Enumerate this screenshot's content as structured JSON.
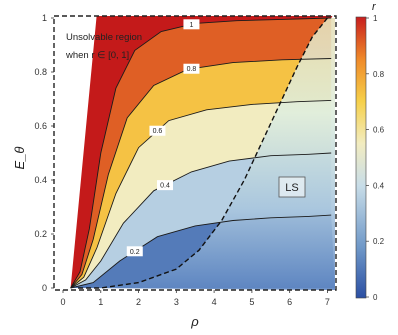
{
  "chart_data": {
    "type": "contour",
    "xlabel": "ρ",
    "ylabel": "E_θ",
    "colorbar_label": "r",
    "xlim": [
      0,
      7.2
    ],
    "ylim": [
      0,
      1.0
    ],
    "xticks": [
      "0",
      "1",
      "2",
      "3",
      "4",
      "5",
      "6",
      "7"
    ],
    "yticks": [
      "0",
      "0.2",
      "0.4",
      "0.6",
      "0.8",
      "1"
    ],
    "colorbar_ticks": [
      "0",
      "0.2",
      "0.4",
      "0.6",
      "0.8",
      "1"
    ],
    "colorbar_range": [
      0,
      1
    ],
    "colormap": [
      "#2b4fa3",
      "#6f98c8",
      "#c8dde8",
      "#f2ecc0",
      "#f6d04a",
      "#ef8a2a",
      "#c81e1e"
    ],
    "annotations": [
      {
        "text_line1": "Unsolvable region",
        "text_line2": "when r ∈ [0, 1]"
      },
      {
        "text": "LS"
      }
    ],
    "contours": [
      {
        "label": "0.2",
        "level": 0.2,
        "x": [
          0.2,
          0.8,
          1.5,
          2.5,
          3.5,
          4.5,
          5.5,
          6.5,
          7.1
        ],
        "y": [
          0.0,
          0.02,
          0.1,
          0.19,
          0.23,
          0.25,
          0.26,
          0.265,
          0.27
        ]
      },
      {
        "label": "0.4",
        "level": 0.4,
        "x": [
          0.2,
          0.6,
          1.0,
          1.6,
          2.4,
          3.4,
          4.4,
          5.5,
          6.5,
          7.1
        ],
        "y": [
          0.0,
          0.03,
          0.1,
          0.24,
          0.36,
          0.43,
          0.47,
          0.49,
          0.495,
          0.5
        ]
      },
      {
        "label": "0.6",
        "level": 0.6,
        "x": [
          0.2,
          0.55,
          0.9,
          1.4,
          2.0,
          2.8,
          3.8,
          5.0,
          6.2,
          7.1
        ],
        "y": [
          0.0,
          0.04,
          0.15,
          0.35,
          0.52,
          0.62,
          0.66,
          0.68,
          0.69,
          0.695
        ]
      },
      {
        "label": "0.8",
        "level": 0.8,
        "x": [
          0.2,
          0.5,
          0.8,
          1.2,
          1.7,
          2.4,
          3.3,
          4.5,
          5.8,
          7.1
        ],
        "y": [
          0.0,
          0.05,
          0.18,
          0.42,
          0.63,
          0.75,
          0.81,
          0.835,
          0.845,
          0.85
        ]
      },
      {
        "label": "1",
        "level": 1.0,
        "x": [
          0.2,
          0.45,
          0.7,
          1.0,
          1.4,
          1.9,
          2.6,
          3.5,
          4.6,
          5.8,
          7.1
        ],
        "y": [
          0.0,
          0.06,
          0.22,
          0.5,
          0.74,
          0.88,
          0.95,
          0.98,
          0.99,
          0.995,
          1.0
        ]
      }
    ],
    "ls_boundary": {
      "x": [
        0.4,
        1.0,
        2.0,
        3.0,
        3.6,
        4.2,
        4.8,
        5.3,
        5.8,
        6.2,
        6.6,
        7.0
      ],
      "y": [
        0.0,
        0.0,
        0.02,
        0.07,
        0.14,
        0.25,
        0.4,
        0.55,
        0.7,
        0.82,
        0.93,
        1.0
      ]
    }
  }
}
